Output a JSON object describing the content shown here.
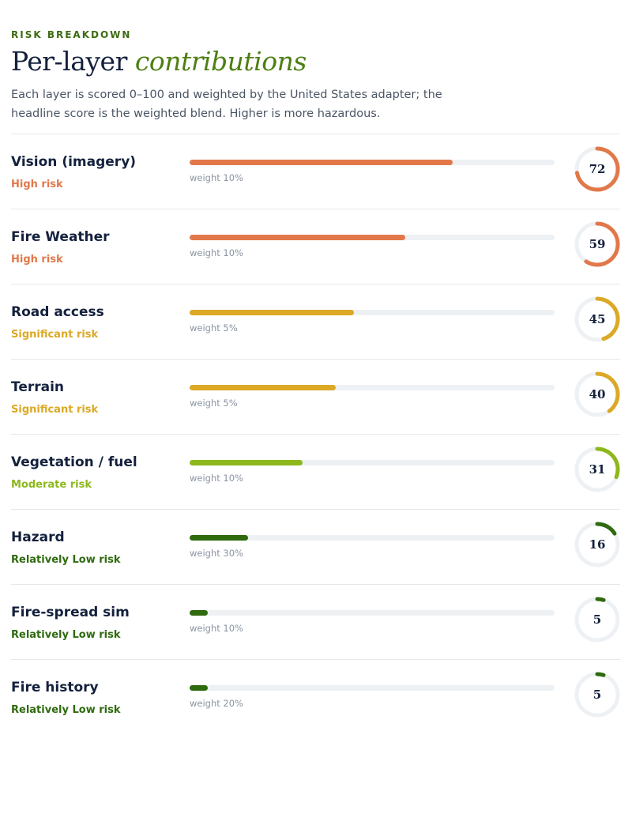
{
  "header": {
    "eyebrow": "RISK BREAKDOWN",
    "title_plain": "Per-layer ",
    "title_accent": "contributions",
    "intro": "Each layer is scored 0–100 and weighted by the United States adapter; the headline score is the weighted blend. Higher is more hazardous."
  },
  "colors": {
    "high": "#e2784a",
    "significant": "#dba925",
    "moderate": "#8db81b",
    "low": "#2f6a0f",
    "track": "#eef1f4"
  },
  "layers": [
    {
      "name": "Vision (imagery)",
      "risk_label": "High risk",
      "risk_level": "high",
      "score": 72,
      "weight_label": "weight 10%"
    },
    {
      "name": "Fire Weather",
      "risk_label": "High risk",
      "risk_level": "high",
      "score": 59,
      "weight_label": "weight 10%"
    },
    {
      "name": "Road access",
      "risk_label": "Significant risk",
      "risk_level": "significant",
      "score": 45,
      "weight_label": "weight 5%"
    },
    {
      "name": "Terrain",
      "risk_label": "Significant risk",
      "risk_level": "significant",
      "score": 40,
      "weight_label": "weight 5%"
    },
    {
      "name": "Vegetation / fuel",
      "risk_label": "Moderate risk",
      "risk_level": "moderate",
      "score": 31,
      "weight_label": "weight 10%"
    },
    {
      "name": "Hazard",
      "risk_label": "Relatively Low risk",
      "risk_level": "low",
      "score": 16,
      "weight_label": "weight 30%"
    },
    {
      "name": "Fire-spread sim",
      "risk_label": "Relatively Low risk",
      "risk_level": "low",
      "score": 5,
      "weight_label": "weight 10%"
    },
    {
      "name": "Fire history",
      "risk_label": "Relatively Low risk",
      "risk_level": "low",
      "score": 5,
      "weight_label": "weight 20%"
    }
  ]
}
